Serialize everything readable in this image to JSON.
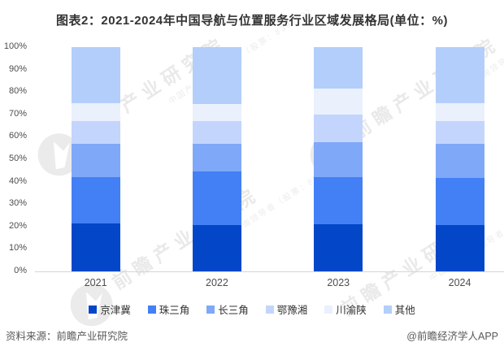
{
  "title": "图表2：2021-2024年中国导航与位置服务行业区域发展格局(单位：%)",
  "source_left": "资料来源：前瞻产业研究院",
  "source_right": "@前瞻经济学人APP",
  "watermark": {
    "brand": "前瞻产业研究院",
    "sub": "中国产业咨询领导者（股票：839599）"
  },
  "chart_data": {
    "type": "bar",
    "stacked": true,
    "percent_stacked": true,
    "unit": "%",
    "title": "图表2：2021-2024年中国导航与位置服务行业区域发展格局(单位：%)",
    "categories": [
      "2021",
      "2022",
      "2023",
      "2024"
    ],
    "series": [
      {
        "name": "京津冀",
        "color": "#0446c8",
        "values": [
          21.5,
          20.5,
          21.0,
          20.5
        ]
      },
      {
        "name": "珠三角",
        "color": "#4380f5",
        "values": [
          20.5,
          24.0,
          21.0,
          21.0
        ]
      },
      {
        "name": "长三角",
        "color": "#7fa8f8",
        "values": [
          15.0,
          12.5,
          15.5,
          15.5
        ]
      },
      {
        "name": "鄂豫湘",
        "color": "#c3d5fc",
        "values": [
          10.0,
          10.0,
          12.5,
          10.0
        ]
      },
      {
        "name": "川渝陕",
        "color": "#eaf1fd",
        "values": [
          8.0,
          7.5,
          11.5,
          8.0
        ]
      },
      {
        "name": "其他",
        "color": "#b3cefa",
        "values": [
          25.0,
          25.5,
          18.5,
          25.0
        ]
      }
    ],
    "yticks": [
      "0%",
      "10%",
      "20%",
      "30%",
      "40%",
      "50%",
      "60%",
      "70%",
      "80%",
      "90%",
      "100%"
    ],
    "ylim": [
      0,
      100
    ],
    "xlabel": "",
    "ylabel": "",
    "grid": false,
    "legend_position": "bottom"
  }
}
